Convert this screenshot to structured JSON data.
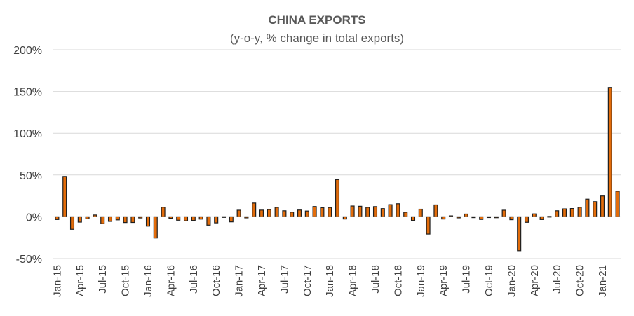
{
  "chart_data": {
    "type": "bar",
    "title": "CHINA EXPORTS",
    "subtitle": "(y-o-y, % change in total exports)",
    "xlabel": "",
    "ylabel": "",
    "ylim": [
      -50,
      200
    ],
    "yticks": [
      -50,
      0,
      50,
      100,
      150,
      200
    ],
    "ytick_labels": [
      "-50%",
      "0%",
      "50%",
      "100%",
      "150%",
      "200%"
    ],
    "grid": true,
    "legend": "none",
    "bar_color": "#E36C0A",
    "bar_edge_color": "#1f1f1f",
    "categories": [
      "Jan-15",
      "Feb-15",
      "Mar-15",
      "Apr-15",
      "May-15",
      "Jun-15",
      "Jul-15",
      "Aug-15",
      "Sep-15",
      "Oct-15",
      "Nov-15",
      "Dec-15",
      "Jan-16",
      "Feb-16",
      "Mar-16",
      "Apr-16",
      "May-16",
      "Jun-16",
      "Jul-16",
      "Aug-16",
      "Sep-16",
      "Oct-16",
      "Nov-16",
      "Dec-16",
      "Jan-17",
      "Feb-17",
      "Mar-17",
      "Apr-17",
      "May-17",
      "Jun-17",
      "Jul-17",
      "Aug-17",
      "Sep-17",
      "Oct-17",
      "Nov-17",
      "Dec-17",
      "Jan-18",
      "Feb-18",
      "Mar-18",
      "Apr-18",
      "May-18",
      "Jun-18",
      "Jul-18",
      "Aug-18",
      "Sep-18",
      "Oct-18",
      "Nov-18",
      "Dec-18",
      "Jan-19",
      "Feb-19",
      "Mar-19",
      "Apr-19",
      "May-19",
      "Jun-19",
      "Jul-19",
      "Aug-19",
      "Sep-19",
      "Oct-19",
      "Nov-19",
      "Dec-19",
      "Jan-20",
      "Feb-20",
      "Mar-20",
      "Apr-20",
      "May-20",
      "Jun-20",
      "Jul-20",
      "Aug-20",
      "Sep-20",
      "Oct-20",
      "Nov-20",
      "Dec-20",
      "Jan-21",
      "Feb-21",
      "Mar-21"
    ],
    "values": [
      -3.3,
      48.3,
      -15.0,
      -6.4,
      -2.5,
      2.1,
      -8.3,
      -5.5,
      -3.7,
      -6.9,
      -6.8,
      -1.4,
      -11.2,
      -25.4,
      11.5,
      -1.8,
      -4.1,
      -4.8,
      -4.4,
      -2.8,
      -10.0,
      -7.3,
      0.1,
      -6.1,
      7.9,
      -1.3,
      16.4,
      8.0,
      8.7,
      11.3,
      7.2,
      5.5,
      8.1,
      6.9,
      12.3,
      10.9,
      11.1,
      44.5,
      -2.7,
      12.9,
      12.6,
      11.3,
      12.2,
      9.8,
      14.5,
      15.6,
      5.4,
      -4.4,
      9.1,
      -20.7,
      14.2,
      -2.7,
      1.1,
      -1.3,
      3.3,
      -1.0,
      -3.2,
      -0.9,
      -1.1,
      7.9,
      -3.5,
      -40.6,
      -6.6,
      3.5,
      -3.3,
      0.5,
      7.2,
      9.5,
      9.9,
      11.4,
      21.1,
      18.1,
      24.9,
      154.9,
      30.6
    ],
    "xtick_labels": [
      "Jan-15",
      "Apr-15",
      "Jul-15",
      "Oct-15",
      "Jan-16",
      "Apr-16",
      "Jul-16",
      "Oct-16",
      "Jan-17",
      "Apr-17",
      "Jul-17",
      "Oct-17",
      "Jan-18",
      "Apr-18",
      "Jul-18",
      "Oct-18",
      "Jan-19",
      "Apr-19",
      "Jul-19",
      "Oct-19",
      "Jan-20",
      "Apr-20",
      "Jul-20",
      "Oct-20",
      "Jan-21"
    ]
  }
}
